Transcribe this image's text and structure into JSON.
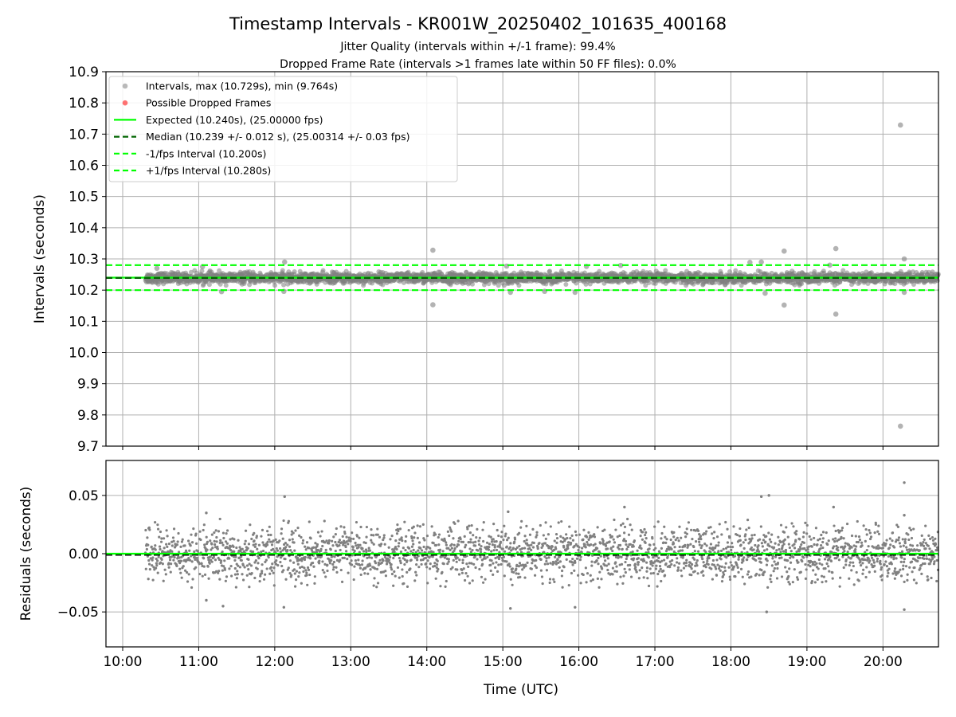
{
  "colors": {
    "intervals": "#808080",
    "dropped": "#ff0000",
    "expected": "#00ff00",
    "median": "#006400",
    "bound": "#00ff00",
    "grid": "#b0b0b0"
  },
  "chart_data": [
    {
      "type": "scatter",
      "panel": "top",
      "title": "Timestamp Intervals - KR001W_20250402_101635_400168",
      "subtitle_lines": [
        "Jitter Quality (intervals within +/-1 frame): 99.4%",
        "Dropped Frame Rate (intervals >1 frames late within 50 FF files): 0.0%"
      ],
      "ylabel": "Intervals (seconds)",
      "xlabel": "",
      "x_unit": "hours UTC",
      "xlim": [
        9.78,
        20.73
      ],
      "ylim": [
        9.7,
        10.9
      ],
      "yticks": [
        "9.7",
        "9.8",
        "9.9",
        "10.0",
        "10.1",
        "10.2",
        "10.3",
        "10.4",
        "10.5",
        "10.6",
        "10.7",
        "10.8",
        "10.9"
      ],
      "grid": true,
      "legend_position": "upper-left",
      "legend": [
        {
          "label": "Intervals, max (10.729s), min (9.764s)",
          "kind": "dot",
          "color": "#808080"
        },
        {
          "label": "Possible Dropped Frames",
          "kind": "dot",
          "color": "#ff0000"
        },
        {
          "label": "Expected (10.240s), (25.00000 fps)",
          "kind": "solid",
          "color": "#00ff00"
        },
        {
          "label": "Median (10.239 +/- 0.012 s), (25.00314 +/- 0.03 fps)",
          "kind": "dashed",
          "color": "#006400"
        },
        {
          "label": "-1/fps Interval (10.200s)",
          "kind": "dashed",
          "color": "#00ff00"
        },
        {
          "label": "+1/fps Interval (10.280s)",
          "kind": "dashed",
          "color": "#00ff00"
        }
      ],
      "reference_lines": [
        {
          "name": "expected",
          "y": 10.24,
          "style": "solid"
        },
        {
          "name": "median",
          "y": 10.239,
          "style": "dashed"
        },
        {
          "name": "lower",
          "y": 10.2,
          "style": "dashed"
        },
        {
          "name": "upper",
          "y": 10.28,
          "style": "dashed"
        }
      ],
      "series": [
        {
          "kind": "intervals-band",
          "x_range": [
            10.3,
            20.73
          ],
          "center": 10.239,
          "spread": 0.012
        },
        {
          "kind": "outliers",
          "points": [
            {
              "x": 10.45,
              "y": 10.27
            },
            {
              "x": 11.05,
              "y": 10.275
            },
            {
              "x": 11.3,
              "y": 10.195
            },
            {
              "x": 12.13,
              "y": 10.29
            },
            {
              "x": 12.12,
              "y": 10.196
            },
            {
              "x": 14.08,
              "y": 10.328
            },
            {
              "x": 14.08,
              "y": 10.153
            },
            {
              "x": 15.05,
              "y": 10.277
            },
            {
              "x": 15.1,
              "y": 10.193
            },
            {
              "x": 15.55,
              "y": 10.196
            },
            {
              "x": 15.95,
              "y": 10.193
            },
            {
              "x": 16.1,
              "y": 10.276
            },
            {
              "x": 16.55,
              "y": 10.279
            },
            {
              "x": 18.25,
              "y": 10.289
            },
            {
              "x": 18.4,
              "y": 10.29
            },
            {
              "x": 18.45,
              "y": 10.19
            },
            {
              "x": 18.7,
              "y": 10.325
            },
            {
              "x": 18.7,
              "y": 10.152
            },
            {
              "x": 19.3,
              "y": 10.28
            },
            {
              "x": 19.38,
              "y": 10.333
            },
            {
              "x": 19.38,
              "y": 10.123
            },
            {
              "x": 20.23,
              "y": 10.729
            },
            {
              "x": 20.23,
              "y": 9.764
            },
            {
              "x": 20.28,
              "y": 10.3
            },
            {
              "x": 20.28,
              "y": 10.193
            }
          ]
        }
      ]
    },
    {
      "type": "scatter",
      "panel": "bottom",
      "title": "",
      "ylabel": "Residuals (seconds)",
      "xlabel": "Time (UTC)",
      "x_unit": "hours UTC",
      "xlim": [
        9.78,
        20.73
      ],
      "ylim": [
        -0.08,
        0.08
      ],
      "yticks": [
        {
          "value": 0.05,
          "label": "0.05"
        },
        {
          "value": 0.0,
          "label": "0.00"
        },
        {
          "value": -0.05,
          "label": "−0.05"
        }
      ],
      "xticks": [
        {
          "value": 10,
          "label": "10:00"
        },
        {
          "value": 11,
          "label": "11:00"
        },
        {
          "value": 12,
          "label": "12:00"
        },
        {
          "value": 13,
          "label": "13:00"
        },
        {
          "value": 14,
          "label": "14:00"
        },
        {
          "value": 15,
          "label": "15:00"
        },
        {
          "value": 16,
          "label": "16:00"
        },
        {
          "value": 17,
          "label": "17:00"
        },
        {
          "value": 18,
          "label": "18:00"
        },
        {
          "value": 19,
          "label": "19:00"
        },
        {
          "value": 20,
          "label": "20:00"
        }
      ],
      "grid": true,
      "reference_lines": [
        {
          "name": "zero-green",
          "y": 0.0,
          "style": "solid"
        },
        {
          "name": "median-offset",
          "y": -0.0012,
          "style": "dashed"
        }
      ],
      "series": [
        {
          "kind": "residuals-band",
          "x_range": [
            10.3,
            20.73
          ],
          "spread": 0.012
        },
        {
          "kind": "outliers",
          "points": [
            {
              "x": 11.1,
              "y": 0.035
            },
            {
              "x": 12.13,
              "y": 0.049
            },
            {
              "x": 12.12,
              "y": -0.046
            },
            {
              "x": 11.32,
              "y": -0.045
            },
            {
              "x": 11.1,
              "y": -0.04
            },
            {
              "x": 15.07,
              "y": 0.036
            },
            {
              "x": 15.1,
              "y": -0.047
            },
            {
              "x": 15.95,
              "y": -0.046
            },
            {
              "x": 16.6,
              "y": 0.04
            },
            {
              "x": 18.4,
              "y": 0.049
            },
            {
              "x": 18.5,
              "y": 0.05
            },
            {
              "x": 18.47,
              "y": -0.05
            },
            {
              "x": 19.35,
              "y": 0.04
            },
            {
              "x": 20.28,
              "y": 0.061
            },
            {
              "x": 20.28,
              "y": -0.048
            },
            {
              "x": 20.28,
              "y": 0.033
            }
          ]
        }
      ]
    }
  ]
}
